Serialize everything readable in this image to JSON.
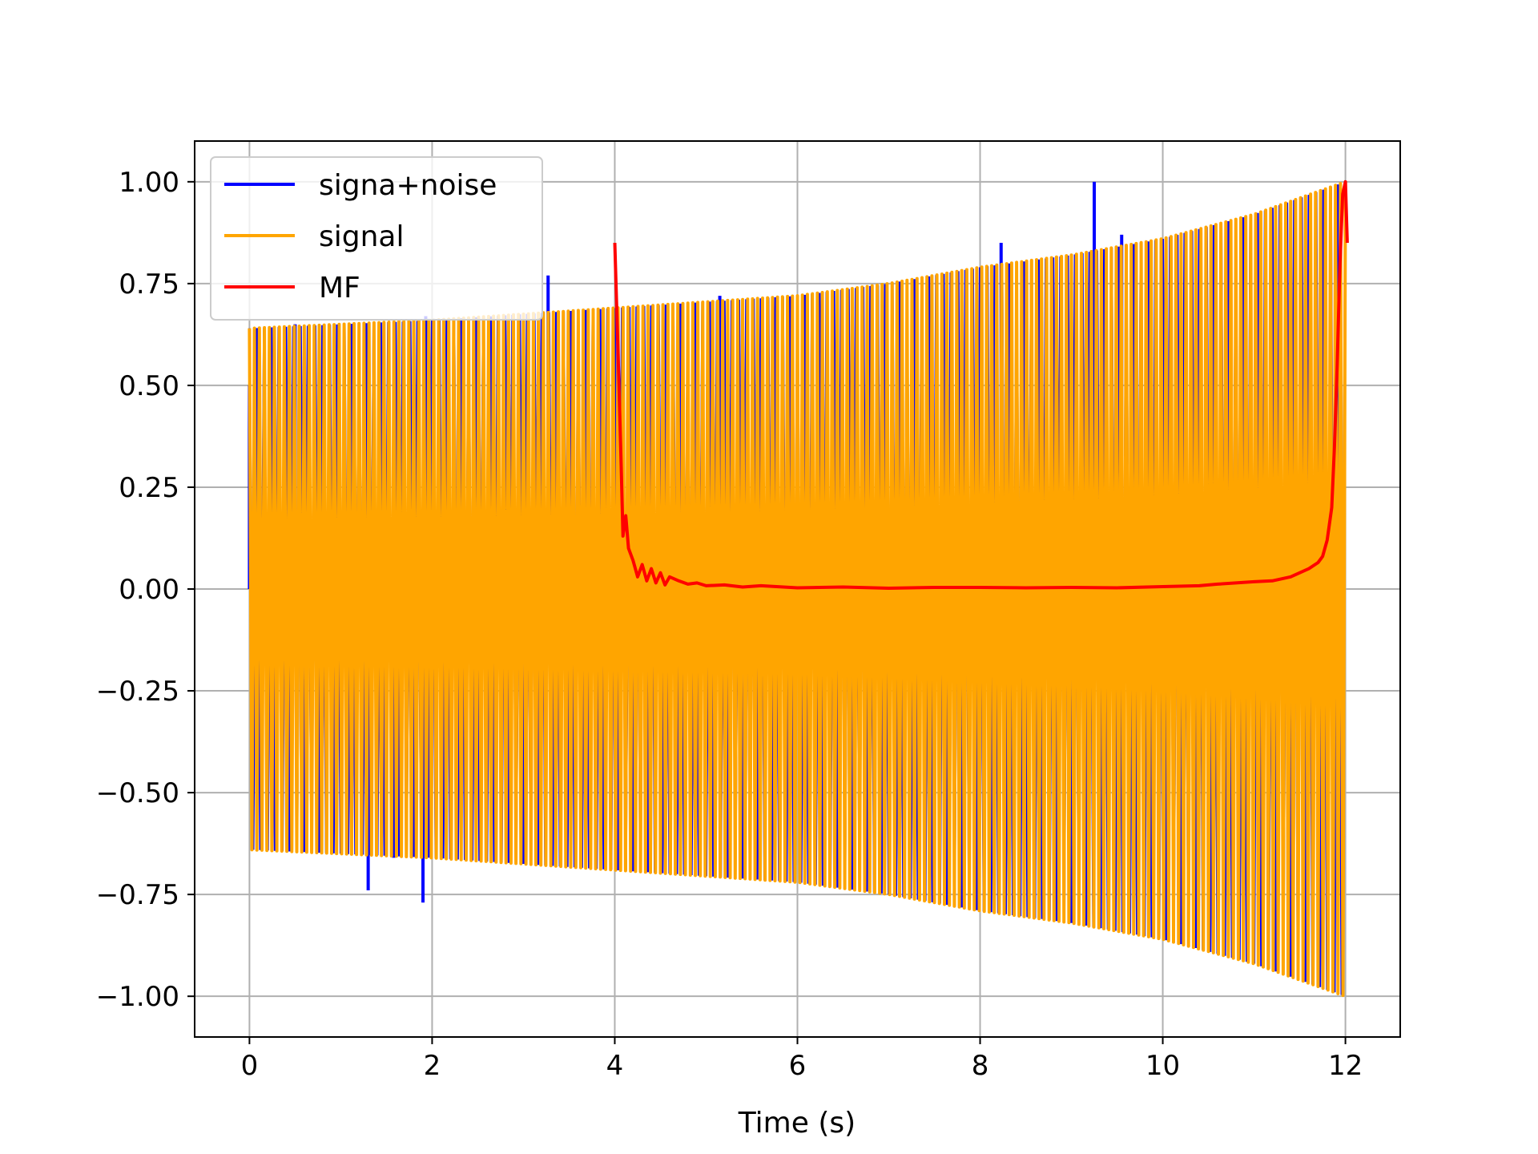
{
  "chart_data": {
    "type": "line",
    "title": "",
    "xlabel": "Time (s)",
    "ylabel": "",
    "xlim": [
      -0.6,
      12.6
    ],
    "ylim": [
      -1.1,
      1.1
    ],
    "grid": true,
    "legend_position": "upper-left",
    "x_ticks": [
      {
        "value": 0,
        "label": "0"
      },
      {
        "value": 2,
        "label": "2"
      },
      {
        "value": 4,
        "label": "4"
      },
      {
        "value": 6,
        "label": "6"
      },
      {
        "value": 8,
        "label": "8"
      },
      {
        "value": 10,
        "label": "10"
      },
      {
        "value": 12,
        "label": "12"
      }
    ],
    "y_ticks": [
      {
        "value": 1.0,
        "label": "1.00"
      },
      {
        "value": 0.75,
        "label": "0.75"
      },
      {
        "value": 0.5,
        "label": "0.50"
      },
      {
        "value": 0.25,
        "label": "0.25"
      },
      {
        "value": 0.0,
        "label": "0.00"
      },
      {
        "value": -0.25,
        "label": "−0.25"
      },
      {
        "value": -0.5,
        "label": "−0.50"
      },
      {
        "value": -0.75,
        "label": "−0.75"
      },
      {
        "value": -1.0,
        "label": "−1.00"
      }
    ],
    "series": [
      {
        "name": "signa+noise",
        "color": "#0000ff",
        "x_range": [
          0,
          12
        ],
        "envelope": [
          [
            0,
            0.64
          ],
          [
            2,
            0.66
          ],
          [
            4,
            0.69
          ],
          [
            6,
            0.72
          ],
          [
            7,
            0.75
          ],
          [
            8,
            0.79
          ],
          [
            9,
            0.82
          ],
          [
            10,
            0.86
          ],
          [
            11,
            0.92
          ],
          [
            12,
            1.0
          ]
        ],
        "spikes": [
          {
            "x": 0.0,
            "y": 0.5
          },
          {
            "x": 0.5,
            "y": 0.65
          },
          {
            "x": 1.3,
            "y": -0.74
          },
          {
            "x": 1.58,
            "y": -0.66
          },
          {
            "x": 1.9,
            "y": -0.77
          },
          {
            "x": 1.93,
            "y": 0.67
          },
          {
            "x": 3.27,
            "y": 0.77
          },
          {
            "x": 5.15,
            "y": 0.72
          },
          {
            "x": 8.23,
            "y": 0.85
          },
          {
            "x": 9.25,
            "y": 1.0
          },
          {
            "x": 9.55,
            "y": 0.87
          }
        ]
      },
      {
        "name": "signal",
        "color": "#ffa500",
        "x_range": [
          0,
          12
        ],
        "envelope": [
          [
            0,
            0.64
          ],
          [
            2,
            0.66
          ],
          [
            4,
            0.69
          ],
          [
            6,
            0.72
          ],
          [
            7,
            0.75
          ],
          [
            8,
            0.79
          ],
          [
            9,
            0.82
          ],
          [
            10,
            0.86
          ],
          [
            11,
            0.92
          ],
          [
            12,
            1.0
          ]
        ]
      },
      {
        "name": "MF",
        "color": "#ff0000",
        "points": [
          [
            4.0,
            0.85
          ],
          [
            4.04,
            0.55
          ],
          [
            4.07,
            0.3
          ],
          [
            4.09,
            0.13
          ],
          [
            4.12,
            0.18
          ],
          [
            4.15,
            0.1
          ],
          [
            4.2,
            0.07
          ],
          [
            4.25,
            0.03
          ],
          [
            4.3,
            0.06
          ],
          [
            4.35,
            0.02
          ],
          [
            4.4,
            0.05
          ],
          [
            4.45,
            0.015
          ],
          [
            4.5,
            0.04
          ],
          [
            4.55,
            0.01
          ],
          [
            4.6,
            0.03
          ],
          [
            4.7,
            0.02
          ],
          [
            4.8,
            0.012
          ],
          [
            4.9,
            0.015
          ],
          [
            5.0,
            0.008
          ],
          [
            5.2,
            0.01
          ],
          [
            5.4,
            0.005
          ],
          [
            5.6,
            0.008
          ],
          [
            6.0,
            0.003
          ],
          [
            6.5,
            0.005
          ],
          [
            7.0,
            0.002
          ],
          [
            7.5,
            0.004
          ],
          [
            8.0,
            0.004
          ],
          [
            8.5,
            0.003
          ],
          [
            9.0,
            0.004
          ],
          [
            9.5,
            0.003
          ],
          [
            10.0,
            0.006
          ],
          [
            10.4,
            0.008
          ],
          [
            10.6,
            0.012
          ],
          [
            10.8,
            0.015
          ],
          [
            11.0,
            0.018
          ],
          [
            11.2,
            0.02
          ],
          [
            11.4,
            0.03
          ],
          [
            11.5,
            0.04
          ],
          [
            11.6,
            0.05
          ],
          [
            11.7,
            0.065
          ],
          [
            11.75,
            0.08
          ],
          [
            11.8,
            0.12
          ],
          [
            11.85,
            0.2
          ],
          [
            11.88,
            0.35
          ],
          [
            11.91,
            0.55
          ],
          [
            11.94,
            0.8
          ],
          [
            11.97,
            0.97
          ],
          [
            12.0,
            1.0
          ],
          [
            12.02,
            0.85
          ]
        ]
      }
    ]
  }
}
